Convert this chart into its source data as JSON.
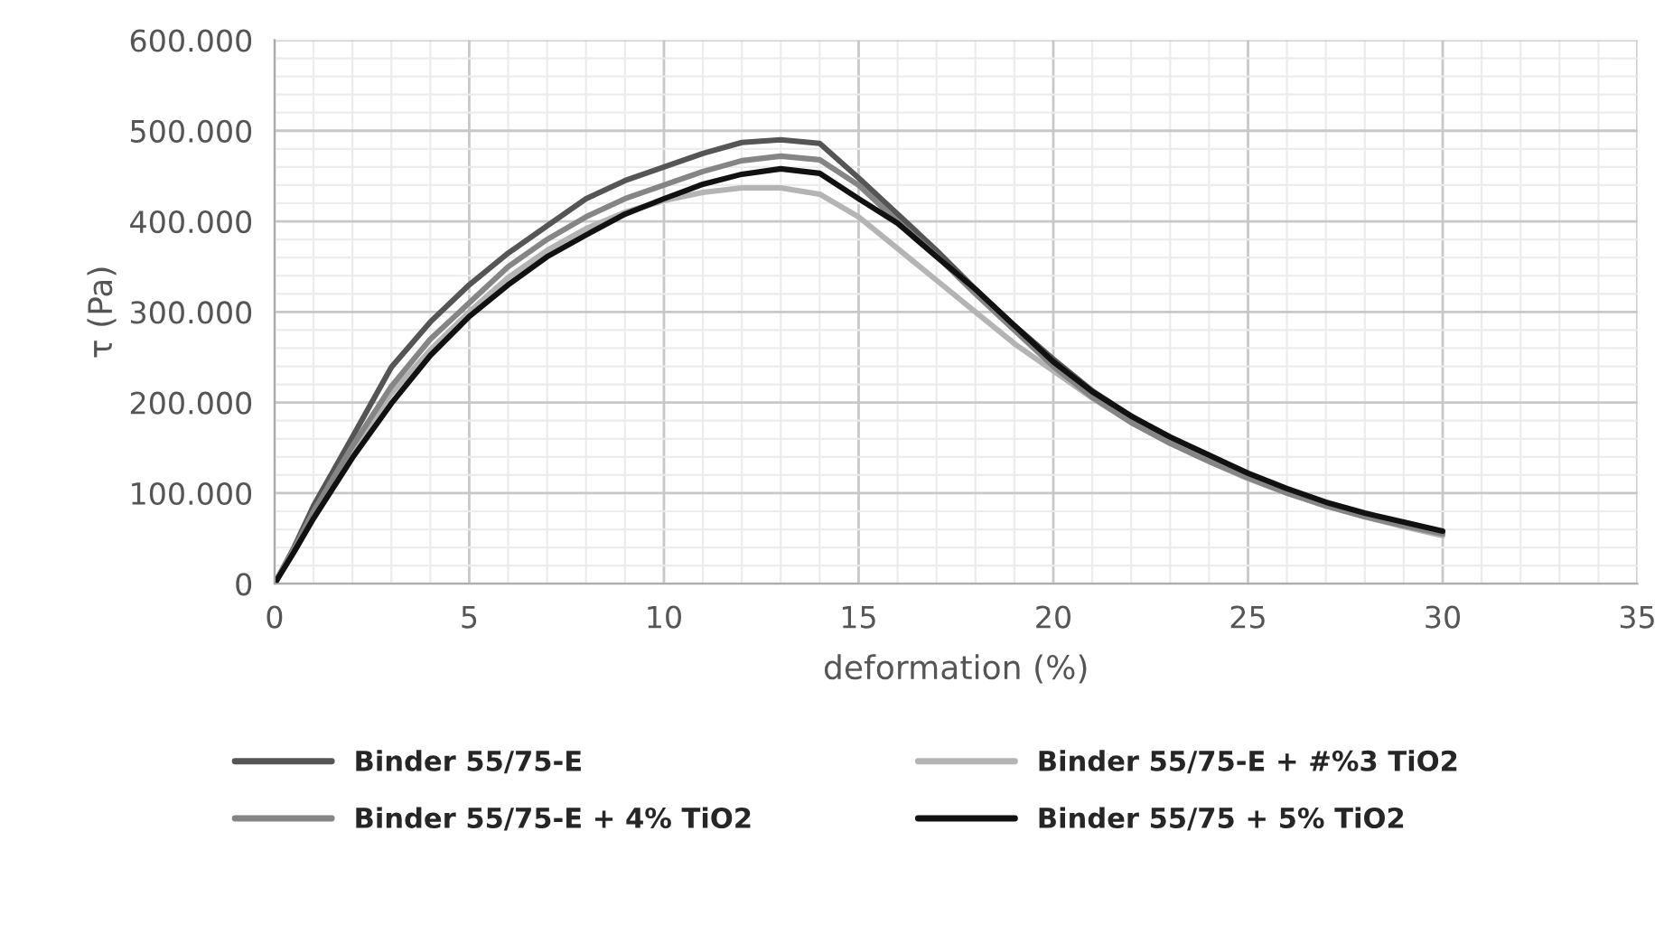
{
  "chart_data": {
    "type": "line",
    "xlabel": "deformation (%)",
    "ylabel": "τ (Pa)",
    "x": [
      0,
      0.5,
      1,
      2,
      3,
      4,
      5,
      6,
      7,
      8,
      9,
      10,
      11,
      12,
      13,
      14,
      15,
      16,
      17,
      18,
      19,
      20,
      21,
      22,
      23,
      24,
      25,
      26,
      27,
      28,
      29,
      30
    ],
    "series": [
      {
        "name": "Binder 55/75-E",
        "color": "#555555",
        "values": [
          0,
          40000,
          86000,
          162000,
          239000,
          289000,
          330000,
          365000,
          395000,
          425000,
          445000,
          460000,
          475000,
          487000,
          490000,
          486000,
          448000,
          408000,
          368000,
          325000,
          285000,
          248000,
          213000,
          185000,
          160000,
          138000,
          120000,
          103000,
          88000,
          76000,
          66000,
          57000
        ]
      },
      {
        "name": "Binder 55/75-E + #%3 TiO2",
        "color": "#b4b4b4",
        "values": [
          0,
          38000,
          78000,
          148000,
          210000,
          258000,
          300000,
          338000,
          368000,
          392000,
          410000,
          423000,
          432000,
          437000,
          437000,
          430000,
          405000,
          370000,
          335000,
          300000,
          265000,
          235000,
          205000,
          178000,
          155000,
          135000,
          116000,
          100000,
          86000,
          74000,
          63000,
          53000
        ]
      },
      {
        "name": "Binder 55/75-E + 4% TiO2",
        "color": "#858585",
        "values": [
          0,
          38000,
          80000,
          152000,
          218000,
          270000,
          310000,
          350000,
          380000,
          405000,
          425000,
          440000,
          455000,
          467000,
          472000,
          468000,
          440000,
          400000,
          362000,
          320000,
          280000,
          240000,
          206000,
          178000,
          155000,
          135000,
          117000,
          100000,
          86000,
          74000,
          64000,
          55000
        ]
      },
      {
        "name": "Binder 55/75 + 5% TiO2",
        "color": "#111111",
        "values": [
          0,
          35000,
          72000,
          139000,
          199000,
          252000,
          295000,
          330000,
          361000,
          385000,
          408000,
          425000,
          441000,
          452000,
          458000,
          453000,
          425000,
          398000,
          361000,
          325000,
          285000,
          245000,
          212000,
          185000,
          162000,
          142000,
          122000,
          105000,
          90000,
          78000,
          68000,
          58000
        ]
      }
    ],
    "xlim": [
      0,
      35
    ],
    "xticks": [
      0,
      5,
      10,
      15,
      20,
      25,
      30,
      35
    ],
    "ylim": [
      0,
      600000
    ],
    "yticks": [
      {
        "value": 0,
        "label": "0"
      },
      {
        "value": 100000,
        "label": "100.000"
      },
      {
        "value": 200000,
        "label": "200.000"
      },
      {
        "value": 300000,
        "label": "300.000"
      },
      {
        "value": 400000,
        "label": "400.000"
      },
      {
        "value": 500000,
        "label": "500.000"
      },
      {
        "value": 600000,
        "label": "600.000"
      }
    ],
    "grid": true,
    "legend": "bottom",
    "marker": "none",
    "line_style": "solid"
  }
}
